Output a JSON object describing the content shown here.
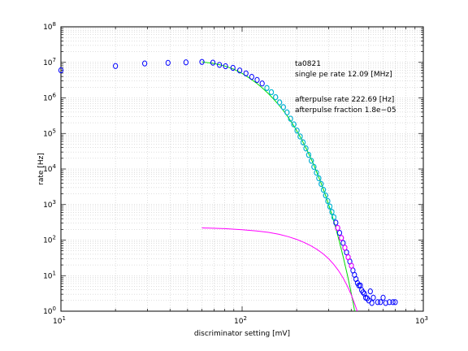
{
  "chart_data": {
    "type": "scatter",
    "xlabel": "discriminator setting [mV]",
    "ylabel": "rate [Hz]",
    "xscale": "log",
    "yscale": "log",
    "xlim": [
      10,
      1000
    ],
    "ylim": [
      1,
      100000000
    ],
    "xticks": [
      {
        "value": 10,
        "base": "10",
        "exp": "1"
      },
      {
        "value": 100,
        "base": "10",
        "exp": "2"
      },
      {
        "value": 1000,
        "base": "10",
        "exp": "3"
      }
    ],
    "yticks": [
      {
        "value": 1,
        "base": "10",
        "exp": "0"
      },
      {
        "value": 10,
        "base": "10",
        "exp": "1"
      },
      {
        "value": 100,
        "base": "10",
        "exp": "2"
      },
      {
        "value": 1000,
        "base": "10",
        "exp": "3"
      },
      {
        "value": 10000,
        "base": "10",
        "exp": "4"
      },
      {
        "value": 100000,
        "base": "10",
        "exp": "5"
      },
      {
        "value": 1000000,
        "base": "10",
        "exp": "6"
      },
      {
        "value": 10000000,
        "base": "10",
        "exp": "7"
      },
      {
        "value": 100000000,
        "base": "10",
        "exp": "8"
      }
    ],
    "annotations": [
      "ta0821",
      "single pe rate 12.09 [MHz]",
      "afterpulse rate 222.69 [Hz]",
      "afterpulse fraction 1.8e−05"
    ],
    "series": [
      {
        "kind": "markers",
        "color": "#0000ff",
        "points": [
          [
            10,
            6000000.0
          ],
          [
            20,
            7900000.0
          ],
          [
            29,
            9300000.0
          ],
          [
            39,
            9700000.0
          ],
          [
            49,
            10000000.0
          ],
          [
            60,
            10300000.0
          ],
          [
            69,
            9800000.0
          ],
          [
            75,
            8500000.0
          ],
          [
            81,
            7800000.0
          ],
          [
            89,
            7000000.0
          ],
          [
            97,
            5900000.0
          ],
          [
            105,
            4900000.0
          ],
          [
            113,
            3900000.0
          ],
          [
            121,
            3200000.0
          ],
          [
            129,
            2550000.0
          ],
          [
            137,
            1900000.0
          ],
          [
            145,
            1450000.0
          ],
          [
            153,
            1050000.0
          ],
          [
            161,
            750000.0
          ],
          [
            169,
            550000.0
          ],
          [
            177,
            390000.0
          ],
          [
            185,
            260000.0
          ],
          [
            193,
            180000.0
          ],
          [
            201,
            120000.0
          ],
          [
            209,
            82000.0
          ],
          [
            217,
            56000.0
          ],
          [
            225,
            38000.0
          ],
          [
            233,
            25000.0
          ],
          [
            241,
            17000.0
          ],
          [
            249,
            11500.0
          ],
          [
            257,
            7900.0
          ],
          [
            265,
            5500.0
          ],
          [
            273,
            3800.0
          ],
          [
            281,
            2600.0
          ],
          [
            289,
            1800.0
          ],
          [
            297,
            1250.0
          ],
          [
            305,
            880.0
          ],
          [
            313,
            620.0
          ],
          [
            321,
            440.0
          ],
          [
            329,
            310.0
          ],
          [
            337,
            220.0
          ],
          [
            345,
            160.0
          ],
          [
            353,
            115.0
          ],
          [
            361,
            83.0
          ],
          [
            369,
            61.0
          ],
          [
            377,
            45.0
          ],
          [
            385,
            33.0
          ],
          [
            393,
            25.0
          ],
          [
            401,
            19.0
          ],
          [
            409,
            14.0
          ],
          [
            417,
            10.5
          ],
          [
            425,
            8.0
          ],
          [
            433,
            6.2
          ],
          [
            441,
            5.3
          ],
          [
            449,
            5.3
          ],
          [
            457,
            3.9
          ],
          [
            465,
            3.4
          ],
          [
            473,
            3.1
          ],
          [
            481,
            2.4
          ],
          [
            490,
            2.3
          ],
          [
            500,
            2.0
          ],
          [
            510,
            3.6
          ],
          [
            520,
            1.7
          ],
          [
            530,
            2.4
          ],
          [
            560,
            1.8
          ],
          [
            580,
            1.8
          ],
          [
            600,
            2.4
          ],
          [
            620,
            1.7
          ],
          [
            650,
            1.8
          ],
          [
            680,
            1.8
          ],
          [
            700,
            1.8
          ]
        ]
      },
      {
        "kind": "markers",
        "color": "#00cccc",
        "points": [
          [
            137,
            1900000.0
          ],
          [
            145,
            1450000.0
          ],
          [
            153,
            1050000.0
          ],
          [
            161,
            750000.0
          ],
          [
            169,
            550000.0
          ],
          [
            177,
            390000.0
          ],
          [
            185,
            260000.0
          ],
          [
            193,
            180000.0
          ],
          [
            201,
            120000.0
          ],
          [
            209,
            82000.0
          ],
          [
            217,
            56000.0
          ],
          [
            225,
            38000.0
          ],
          [
            233,
            25000.0
          ],
          [
            241,
            17000.0
          ],
          [
            249,
            11500.0
          ],
          [
            257,
            7900.0
          ],
          [
            265,
            5500.0
          ],
          [
            273,
            3800.0
          ],
          [
            281,
            2600.0
          ],
          [
            289,
            1800.0
          ],
          [
            297,
            1250.0
          ],
          [
            305,
            880.0
          ],
          [
            313,
            620.0
          ],
          [
            321,
            440.0
          ]
        ]
      },
      {
        "kind": "markers",
        "color": "#ff00ff",
        "points": [
          [
            337,
            220.0
          ],
          [
            353,
            115.0
          ],
          [
            369,
            61.0
          ],
          [
            385,
            33.0
          ],
          [
            401,
            19.0
          ]
        ]
      },
      {
        "kind": "line",
        "color": "#00dd00",
        "points": [
          [
            60,
            10300000.0
          ],
          [
            70,
            9300000.0
          ],
          [
            80,
            7900000.0
          ],
          [
            90,
            6400000.0
          ],
          [
            100,
            4900000.0
          ],
          [
            110,
            3600000.0
          ],
          [
            120,
            2600000.0
          ],
          [
            130,
            1850000.0
          ],
          [
            140,
            1300000.0
          ],
          [
            150,
            900000.0
          ],
          [
            160,
            620000.0
          ],
          [
            170,
            420000.0
          ],
          [
            180,
            280000.0
          ],
          [
            190,
            185000.0
          ],
          [
            200,
            120000.0
          ],
          [
            210,
            77000.0
          ],
          [
            220,
            49000.0
          ],
          [
            230,
            31000.0
          ],
          [
            240,
            19500.0
          ],
          [
            250,
            12200.0
          ],
          [
            260,
            7500.0
          ],
          [
            270,
            4600.0
          ],
          [
            280,
            2800.0
          ],
          [
            290,
            1700.0
          ],
          [
            300,
            1000.0
          ],
          [
            310,
            600.0
          ],
          [
            320,
            350.0
          ],
          [
            330,
            200.0
          ],
          [
            340,
            115.0
          ],
          [
            350,
            65.0
          ],
          [
            360,
            36.0
          ],
          [
            370,
            20.0
          ],
          [
            380,
            11.0
          ],
          [
            390,
            6.0
          ],
          [
            400,
            3.2
          ],
          [
            410,
            1.7
          ],
          [
            418,
            1.0
          ]
        ]
      },
      {
        "kind": "line",
        "color": "#ff00ff",
        "points": [
          [
            60,
            220.0
          ],
          [
            80,
            210.0
          ],
          [
            100,
            195.0
          ],
          [
            120,
            180.0
          ],
          [
            140,
            165.0
          ],
          [
            160,
            145.0
          ],
          [
            180,
            125.0
          ],
          [
            200,
            105.0
          ],
          [
            220,
            86.0
          ],
          [
            240,
            69.0
          ],
          [
            260,
            54.0
          ],
          [
            280,
            41.0
          ],
          [
            300,
            30.0
          ],
          [
            320,
            21.0
          ],
          [
            340,
            14.0
          ],
          [
            360,
            8.8
          ],
          [
            380,
            5.2
          ],
          [
            400,
            2.9
          ],
          [
            420,
            1.5
          ],
          [
            432,
            1.0
          ]
        ]
      }
    ]
  }
}
